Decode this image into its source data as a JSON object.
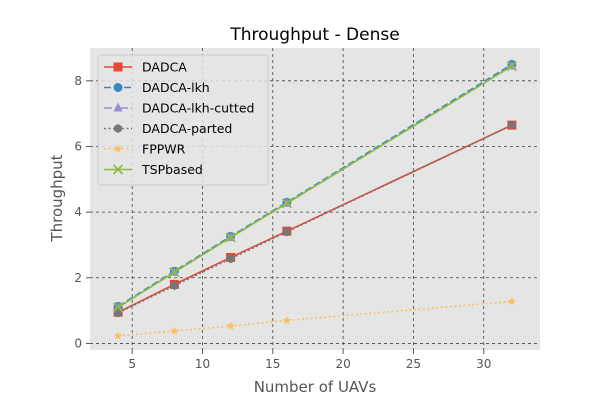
{
  "chart_data": {
    "type": "line",
    "title": "Throughput - Dense",
    "xlabel": "Number of UAVs",
    "ylabel": "Throughput",
    "x": [
      4,
      8,
      12,
      16,
      32
    ],
    "xlim": [
      2,
      34
    ],
    "ylim": [
      -0.2,
      9
    ],
    "xticks": [
      5,
      10,
      15,
      20,
      25,
      30
    ],
    "yticks": [
      0,
      2,
      4,
      6,
      8
    ],
    "grid": true,
    "legend_position": "upper-left",
    "series": [
      {
        "name": "DADCA",
        "values": [
          0.95,
          1.8,
          2.62,
          3.42,
          6.65
        ],
        "color": "#e24a33",
        "marker": "square",
        "dash": "solid"
      },
      {
        "name": "DADCA-lkh",
        "values": [
          1.13,
          2.2,
          3.26,
          4.3,
          8.5
        ],
        "color": "#348abd",
        "marker": "circle",
        "dash": "dashed"
      },
      {
        "name": "DADCA-lkh-cutted",
        "values": [
          1.1,
          2.17,
          3.23,
          4.27,
          8.45
        ],
        "color": "#988ed5",
        "marker": "triangle",
        "dash": "dashdot"
      },
      {
        "name": "DADCA-parted",
        "values": [
          0.93,
          1.76,
          2.58,
          3.4,
          6.65
        ],
        "color": "#777777",
        "marker": "hexagon",
        "dash": "dotted"
      },
      {
        "name": "FPPWR",
        "values": [
          0.23,
          0.38,
          0.53,
          0.7,
          1.28
        ],
        "color": "#fbc15e",
        "marker": "star",
        "dash": "dotted"
      },
      {
        "name": "TSPbased",
        "values": [
          1.1,
          2.17,
          3.23,
          4.27,
          8.45
        ],
        "color": "#8eba42",
        "marker": "x",
        "dash": "solid"
      }
    ]
  }
}
